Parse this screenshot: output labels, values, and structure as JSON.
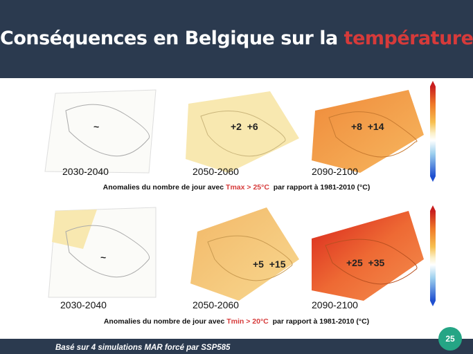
{
  "header": {
    "title": "Conséquences en Belgique sur la ",
    "title_highlight": "température"
  },
  "rows": [
    {
      "maps": [
        {
          "period": "2030-2040",
          "annotation": "~"
        },
        {
          "period": "2050-2060",
          "annotation": "+2  +6"
        },
        {
          "period": "2090-2100",
          "annotation": "+8  +14"
        }
      ],
      "caption": {
        "before": "Anomalies du nombre de jour avec ",
        "highlight": "Tmax > 25°C",
        "after": "  par rapport à 1981-2010 (°C)"
      }
    },
    {
      "maps": [
        {
          "period": "2030-2040",
          "annotation": "~"
        },
        {
          "period": "2050-2060",
          "annotation": "+5  +15"
        },
        {
          "period": "2090-2100",
          "annotation": "+25  +35"
        }
      ],
      "caption": {
        "before": "Anomalies du nombre de jour avec ",
        "highlight": "Tmin > 20°C",
        "after": "  par rapport à 1981-2010 (°C)"
      }
    }
  ],
  "footer": {
    "note": "Basé sur 4 simulations MAR forcé par SSP585",
    "page": "25"
  }
}
